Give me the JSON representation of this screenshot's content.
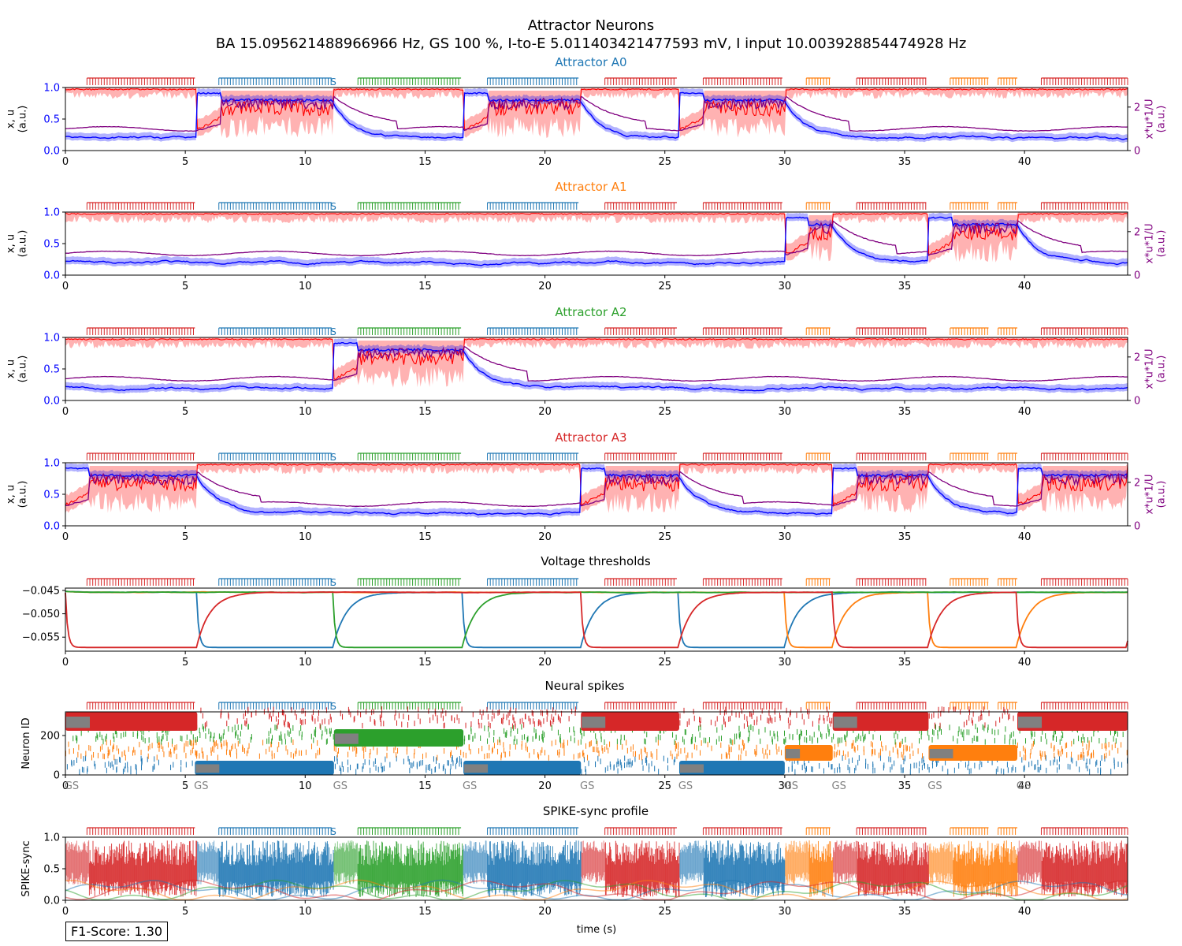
{
  "figure": {
    "title": "Attractor Neurons",
    "subtitle": "BA 15.095621488966966 Hz, GS 100 %, I-to-E 5.011403421477593 mV, I input 10.003928854474928 Hz",
    "f1_score": "F1-Score: 1.30",
    "xlabel": "time (s)"
  },
  "colors": {
    "A0": "#1f77b4",
    "A1": "#ff7f0e",
    "A2": "#2ca02c",
    "A3": "#d62728",
    "x_trace": "#0000ff",
    "u_trace": "#ff0000",
    "xu_trace": "#800080",
    "gs_box": "#808080",
    "left_axis_text": "#0000ff",
    "right_axis_text": "#800080"
  },
  "chart_data": [
    {
      "type": "line",
      "title": "Attractor A0",
      "title_color": "#1f77b4",
      "ylabel": "x, u\n(a.u.)",
      "ylabel_right": "x*u*1/U\n(a.u.)",
      "xlim": [
        0,
        44.3
      ],
      "ylim": [
        0,
        1
      ],
      "ylim_right": [
        0,
        2.9
      ],
      "xticks": [
        "0",
        "5",
        "10",
        "15",
        "20",
        "25",
        "30",
        "35",
        "40"
      ],
      "yticks": [
        "0.0",
        "0.5",
        "1.0"
      ],
      "yticks_right": [
        "0",
        "2"
      ],
      "active_intervals": [
        [
          5.5,
          11.2
        ],
        [
          16.6,
          21.5
        ],
        [
          25.6,
          30
        ]
      ]
    },
    {
      "type": "line",
      "title": "Attractor A1",
      "title_color": "#ff7f0e",
      "ylabel": "x, u\n(a.u.)",
      "ylabel_right": "x*u*1/U\n(a.u.)",
      "xlim": [
        0,
        44.3
      ],
      "ylim": [
        0,
        1
      ],
      "ylim_right": [
        0,
        2.9
      ],
      "xticks": [
        "0",
        "5",
        "10",
        "15",
        "20",
        "25",
        "30",
        "35",
        "40"
      ],
      "yticks": [
        "0.0",
        "0.5",
        "1.0"
      ],
      "yticks_right": [
        "0",
        "2"
      ],
      "active_intervals": [
        [
          30,
          32
        ],
        [
          36,
          39.7
        ]
      ]
    },
    {
      "type": "line",
      "title": "Attractor A2",
      "title_color": "#2ca02c",
      "ylabel": "x, u\n(a.u.)",
      "ylabel_right": "x*u*1/U\n(a.u.)",
      "xlim": [
        0,
        44.3
      ],
      "ylim": [
        0,
        1
      ],
      "ylim_right": [
        0,
        2.9
      ],
      "xticks": [
        "0",
        "5",
        "10",
        "15",
        "20",
        "25",
        "30",
        "35",
        "40"
      ],
      "yticks": [
        "0.0",
        "0.5",
        "1.0"
      ],
      "yticks_right": [
        "0",
        "2"
      ],
      "active_intervals": [
        [
          11.2,
          16.6
        ]
      ]
    },
    {
      "type": "line",
      "title": "Attractor A3",
      "title_color": "#d62728",
      "ylabel": "x, u\n(a.u.)",
      "ylabel_right": "x*u*1/U\n(a.u.)",
      "xlim": [
        0,
        44.3
      ],
      "ylim": [
        0,
        1
      ],
      "ylim_right": [
        0,
        2.9
      ],
      "xticks": [
        "0",
        "5",
        "10",
        "15",
        "20",
        "25",
        "30",
        "35",
        "40"
      ],
      "yticks": [
        "0.0",
        "0.5",
        "1.0"
      ],
      "yticks_right": [
        "0",
        "2"
      ],
      "active_intervals": [
        [
          0,
          5.5
        ],
        [
          21.5,
          25.6
        ],
        [
          32,
          36
        ],
        [
          39.7,
          44.3
        ]
      ]
    },
    {
      "type": "line",
      "title": "Voltage thresholds",
      "xlim": [
        0,
        44.3
      ],
      "ylim": [
        -0.058,
        -0.0445
      ],
      "xticks": [
        "0",
        "5",
        "10",
        "15",
        "20",
        "25",
        "30",
        "35",
        "40"
      ],
      "yticks": [
        "−0.045",
        "−0.050",
        "−0.055"
      ],
      "series": [
        {
          "name": "A0",
          "low_intervals": [
            [
              5.5,
              11.2
            ],
            [
              16.6,
              21.5
            ],
            [
              25.6,
              30
            ]
          ]
        },
        {
          "name": "A1",
          "low_intervals": [
            [
              30,
              32
            ],
            [
              36,
              39.7
            ]
          ]
        },
        {
          "name": "A2",
          "low_intervals": [
            [
              11.2,
              16.6
            ]
          ]
        },
        {
          "name": "A3",
          "low_intervals": [
            [
              0,
              5.5
            ],
            [
              21.5,
              25.6
            ],
            [
              32,
              36
            ],
            [
              39.7,
              44.3
            ]
          ]
        }
      ]
    },
    {
      "type": "scatter",
      "title": "Neural spikes",
      "ylabel": "Neuron ID",
      "xlim": [
        0,
        44.3
      ],
      "ylim": [
        0,
        320
      ],
      "xticks": [
        "0",
        "5",
        "10",
        "15",
        "20",
        "25",
        "30",
        "35",
        "40"
      ],
      "yticks": [
        "0",
        "200"
      ],
      "gs_markers": [
        {
          "t": 0,
          "label": "GS"
        },
        {
          "t": 5.4,
          "label": "GS"
        },
        {
          "t": 11.2,
          "label": "GS"
        },
        {
          "t": 16.6,
          "label": "GS"
        },
        {
          "t": 21.5,
          "label": "GS"
        },
        {
          "t": 25.6,
          "label": "GS"
        },
        {
          "t": 30,
          "label": "GS"
        },
        {
          "t": 32,
          "label": "GS"
        },
        {
          "t": 36,
          "label": "GS"
        },
        {
          "t": 39.7,
          "label": "GS"
        }
      ],
      "attractor_blocks": [
        {
          "attractor": "A3",
          "start": 0,
          "end": 5.5,
          "id_range": [
            224,
            320
          ]
        },
        {
          "attractor": "A0",
          "start": 5.4,
          "end": 11.2,
          "id_range": [
            0,
            72
          ]
        },
        {
          "attractor": "A2",
          "start": 11.2,
          "end": 16.6,
          "id_range": [
            144,
            232
          ]
        },
        {
          "attractor": "A0",
          "start": 16.6,
          "end": 21.5,
          "id_range": [
            0,
            72
          ]
        },
        {
          "attractor": "A3",
          "start": 21.5,
          "end": 25.6,
          "id_range": [
            224,
            320
          ]
        },
        {
          "attractor": "A0",
          "start": 25.6,
          "end": 30,
          "id_range": [
            0,
            72
          ]
        },
        {
          "attractor": "A1",
          "start": 30,
          "end": 32,
          "id_range": [
            72,
            152
          ]
        },
        {
          "attractor": "A3",
          "start": 32,
          "end": 36,
          "id_range": [
            224,
            320
          ]
        },
        {
          "attractor": "A1",
          "start": 36,
          "end": 39.7,
          "id_range": [
            72,
            152
          ]
        },
        {
          "attractor": "A3",
          "start": 39.7,
          "end": 44.3,
          "id_range": [
            224,
            320
          ]
        }
      ]
    },
    {
      "type": "area",
      "title": "SPIKE-sync profile",
      "ylabel": "SPIKE-sync",
      "xlabel": "time (s)",
      "xlim": [
        0,
        44.3
      ],
      "ylim": [
        0,
        1
      ],
      "xticks": [
        "0",
        "5",
        "10",
        "15",
        "20",
        "25",
        "30",
        "35",
        "40"
      ],
      "yticks": [
        "0.0",
        "0.5",
        "1.0"
      ]
    }
  ],
  "stimulus_rasters": [
    {
      "attractor": "A3",
      "start": 0.9,
      "end": 5.4
    },
    {
      "attractor": "A0",
      "start": 6.4,
      "end": 11.1
    },
    {
      "attractor": "A2",
      "start": 12.2,
      "end": 16.5
    },
    {
      "attractor": "A0",
      "start": 17.6,
      "end": 21.4
    },
    {
      "attractor": "A3",
      "start": 22.5,
      "end": 25.5
    },
    {
      "attractor": "A3",
      "start": 26.6,
      "end": 29.9
    },
    {
      "attractor": "A1",
      "start": 30.9,
      "end": 31.9
    },
    {
      "attractor": "A3",
      "start": 33.0,
      "end": 35.9
    },
    {
      "attractor": "A1",
      "start": 36.9,
      "end": 38.5
    },
    {
      "attractor": "A1",
      "start": 38.9,
      "end": 39.7
    },
    {
      "attractor": "A3",
      "start": 40.7,
      "end": 44.3
    }
  ],
  "stimulus_label": "S"
}
